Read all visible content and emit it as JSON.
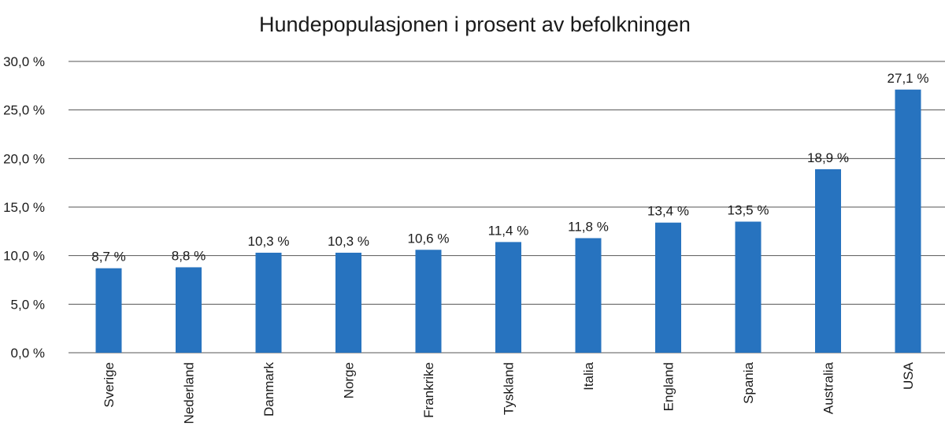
{
  "chart_data": {
    "type": "bar",
    "title": "Hundepopulasjonen i prosent av befolkningen",
    "categories": [
      "Sverige",
      "Nederland",
      "Danmark",
      "Norge",
      "Frankrike",
      "Tyskland",
      "Italia",
      "England",
      "Spania",
      "Australia",
      "USA"
    ],
    "values": [
      8.7,
      8.8,
      10.3,
      10.3,
      10.6,
      11.4,
      11.8,
      13.4,
      13.5,
      18.9,
      27.1
    ],
    "data_labels": [
      "8,7 %",
      "8,8 %",
      "10,3 %",
      "10,3 %",
      "10,6 %",
      "11,4 %",
      "11,8 %",
      "13,4 %",
      "13,5 %",
      "18,9 %",
      "27,1 %"
    ],
    "y_ticks": [
      0,
      5,
      10,
      15,
      20,
      25,
      30
    ],
    "y_tick_labels": [
      "0,0 %",
      "5,0 %",
      "10,0 %",
      "15,0 %",
      "20,0 %",
      "25,0 %",
      "30,0 %"
    ],
    "ylim": [
      0,
      30
    ],
    "xlabel": "",
    "ylabel": "",
    "grid": true,
    "legend": "none",
    "bar_color": "#2773bf"
  }
}
